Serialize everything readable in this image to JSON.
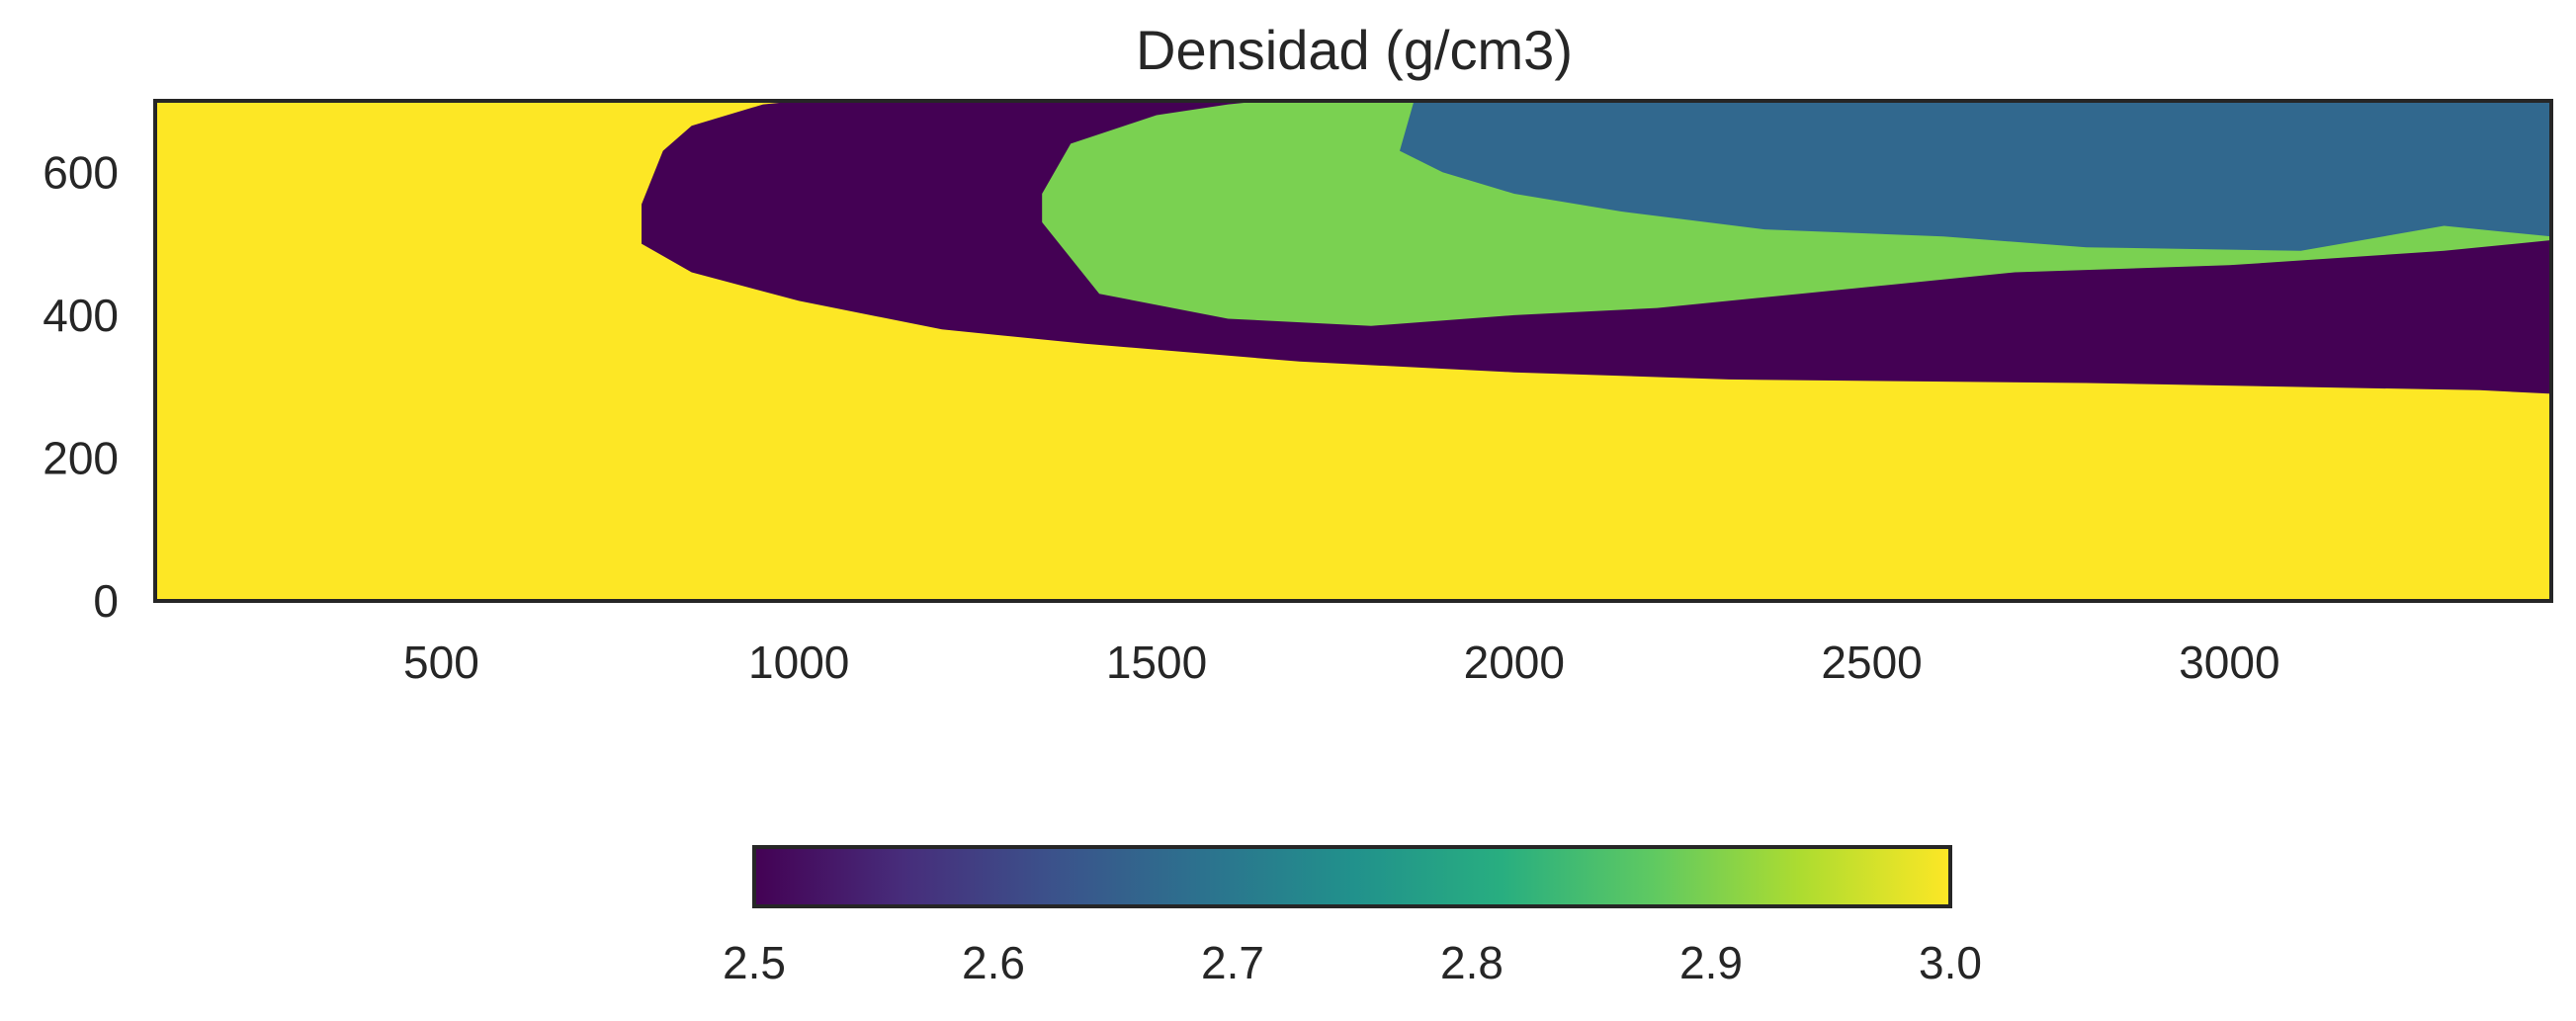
{
  "chart_data": {
    "type": "heatmap",
    "title": "Densidad (g/cm3)",
    "xlabel": "",
    "ylabel": "",
    "xlim": [
      100,
      3450
    ],
    "ylim": [
      0,
      700
    ],
    "x_ticks": [
      "500",
      "1000",
      "1500",
      "2000",
      "2500",
      "3000"
    ],
    "y_ticks": [
      "0",
      "200",
      "400",
      "600"
    ],
    "grid": false,
    "colormap": "viridis",
    "colorbar": {
      "orientation": "horizontal",
      "placement": "bottom",
      "range": [
        2.5,
        3.0
      ],
      "ticks": [
        "2.5",
        "2.6",
        "2.7",
        "2.8",
        "2.9",
        "3.0"
      ]
    },
    "regions": [
      {
        "value": 3.0,
        "color": "#fde725",
        "fill_rule": "base"
      },
      {
        "value": 2.5,
        "color": "#440154",
        "boundary": [
          [
            780,
            555
          ],
          [
            810,
            630
          ],
          [
            850,
            665
          ],
          [
            950,
            695
          ],
          [
            1000,
            700
          ],
          [
            3450,
            700
          ],
          [
            3450,
            290
          ],
          [
            3350,
            295
          ],
          [
            2800,
            305
          ],
          [
            2300,
            310
          ],
          [
            2000,
            320
          ],
          [
            1700,
            335
          ],
          [
            1400,
            360
          ],
          [
            1200,
            380
          ],
          [
            1000,
            420
          ],
          [
            850,
            460
          ],
          [
            780,
            500
          ]
        ]
      },
      {
        "value": 2.9,
        "color": "#7ad151",
        "boundary": [
          [
            1340,
            570
          ],
          [
            1380,
            640
          ],
          [
            1500,
            680
          ],
          [
            1600,
            695
          ],
          [
            1650,
            700
          ],
          [
            3450,
            700
          ],
          [
            3450,
            505
          ],
          [
            3300,
            490
          ],
          [
            3000,
            470
          ],
          [
            2700,
            460
          ],
          [
            2400,
            430
          ],
          [
            2200,
            410
          ],
          [
            2000,
            400
          ],
          [
            1800,
            385
          ],
          [
            1600,
            395
          ],
          [
            1420,
            430
          ],
          [
            1340,
            530
          ]
        ]
      },
      {
        "value": 2.65,
        "color": "#31688e",
        "boundary": [
          [
            1840,
            630
          ],
          [
            1860,
            700
          ],
          [
            3450,
            700
          ],
          [
            3450,
            510
          ],
          [
            3300,
            525
          ],
          [
            3100,
            490
          ],
          [
            2800,
            495
          ],
          [
            2600,
            510
          ],
          [
            2350,
            520
          ],
          [
            2150,
            545
          ],
          [
            2000,
            570
          ],
          [
            1900,
            600
          ]
        ]
      }
    ]
  }
}
